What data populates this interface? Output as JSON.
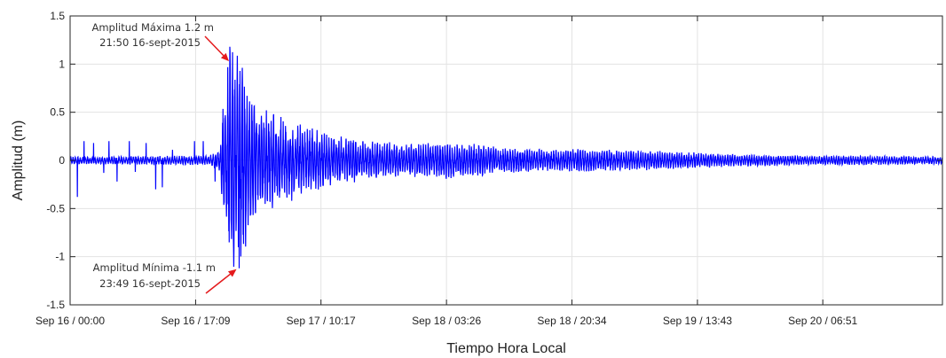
{
  "chart_data": {
    "type": "line",
    "title": "",
    "xlabel": "Tiempo Hora Local",
    "ylabel": "Amplitud (m)",
    "ylim": [
      -1.5,
      1.5
    ],
    "yticks": [
      1.5,
      1,
      0.5,
      0,
      -0.5,
      -1,
      -1.5
    ],
    "ytick_labels": [
      "1.5",
      "1",
      "0.5",
      "0",
      "-0.5",
      "-1",
      "-1.5"
    ],
    "x_unit": "hours since Sep 16 / 00:00",
    "xlim": [
      0,
      119.2
    ],
    "xticks": [
      0,
      17.15,
      34.28,
      51.43,
      68.57,
      85.72,
      102.85
    ],
    "xtick_labels": [
      "Sep 16 / 00:00",
      "Sep 16 / 17:09",
      "Sep 17 / 10:17",
      "Sep 18 / 03:26",
      "Sep 18 / 20:34",
      "Sep 19 / 13:43",
      "Sep 20 / 06:51"
    ],
    "grid": true,
    "line_color": "#0000ff",
    "series": [
      {
        "envelope": {
          "x": [
            0,
            19,
            20.5,
            21.0,
            21.83,
            22.5,
            23.4,
            23.82,
            24.5,
            26,
            28,
            31,
            35,
            40,
            46,
            52,
            58,
            64,
            70,
            80,
            90,
            100,
            110,
            119.2
          ],
          "amp": [
            0.04,
            0.05,
            0.12,
            0.7,
            1.18,
            1.1,
            1.12,
            1.1,
            0.7,
            0.55,
            0.5,
            0.4,
            0.28,
            0.22,
            0.17,
            0.2,
            0.15,
            0.12,
            0.12,
            0.1,
            0.07,
            0.05,
            0.05,
            0.04
          ]
        },
        "spikes": [
          {
            "x": 1.0,
            "y": -0.38
          },
          {
            "x": 1.9,
            "y": 0.2
          },
          {
            "x": 3.2,
            "y": 0.18
          },
          {
            "x": 4.6,
            "y": -0.13
          },
          {
            "x": 5.3,
            "y": 0.2
          },
          {
            "x": 6.4,
            "y": -0.22
          },
          {
            "x": 8.1,
            "y": 0.2
          },
          {
            "x": 8.9,
            "y": -0.12
          },
          {
            "x": 10.4,
            "y": 0.18
          },
          {
            "x": 11.7,
            "y": -0.3
          },
          {
            "x": 12.6,
            "y": -0.28
          },
          {
            "x": 14.0,
            "y": 0.11
          },
          {
            "x": 17.0,
            "y": 0.2
          },
          {
            "x": 18.2,
            "y": 0.2
          },
          {
            "x": 19.8,
            "y": -0.22
          }
        ]
      }
    ]
  },
  "annotations": {
    "max": {
      "line1": "Amplitud Máxima 1.2 m",
      "line2": "21:50 16-sept-2015",
      "point_x": 21.83,
      "point_y": 1.03
    },
    "min": {
      "line1": "Amplitud Mínima -1.1 m",
      "line2": "23:49 16-sept-2015",
      "point_x": 23.1,
      "point_y": -1.13
    },
    "arrow_color": "#e41a1c"
  }
}
